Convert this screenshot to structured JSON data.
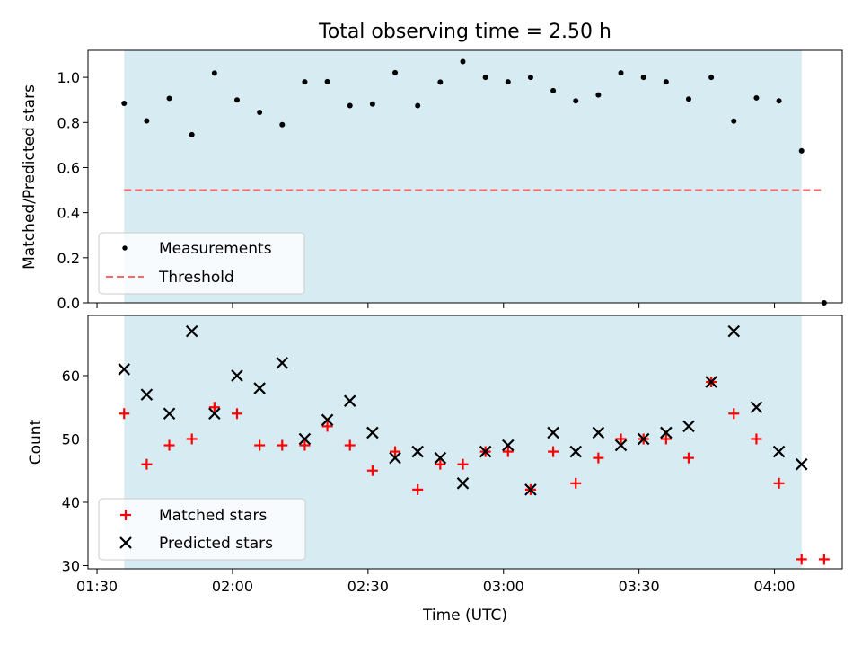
{
  "chart_data": [
    {
      "type": "scatter",
      "title": "Total observing time = 2.50 h",
      "xlabel": "",
      "ylabel": "Matched/Predicted stars",
      "xlim": [
        "01:28",
        "04:15"
      ],
      "ylim": [
        0,
        1.12
      ],
      "yticks": [
        0.0,
        0.2,
        0.4,
        0.6,
        0.8,
        1.0
      ],
      "ytick_labels": [
        "0.0",
        "0.2",
        "0.4",
        "0.6",
        "0.8",
        "1.0"
      ],
      "xticks": [
        "01:30",
        "02:00",
        "02:30",
        "03:00",
        "03:30",
        "04:00"
      ],
      "shaded_interval": {
        "start": "01:36",
        "end": "04:06",
        "color": "#add8e6"
      },
      "legend_position": "lower-left",
      "series": [
        {
          "name": "Measurements",
          "marker": "dot",
          "color": "#000000",
          "x": [
            "01:36",
            "01:41",
            "01:46",
            "01:51",
            "01:56",
            "02:01",
            "02:06",
            "02:11",
            "02:16",
            "02:21",
            "02:26",
            "02:31",
            "02:36",
            "02:41",
            "02:46",
            "02:51",
            "02:56",
            "03:01",
            "03:06",
            "03:11",
            "03:16",
            "03:21",
            "03:26",
            "03:31",
            "03:36",
            "03:41",
            "03:46",
            "03:51",
            "03:56",
            "04:01",
            "04:06",
            "04:11"
          ],
          "y": [
            0.885,
            0.807,
            0.907,
            0.746,
            1.019,
            0.9,
            0.845,
            0.79,
            0.98,
            0.981,
            0.875,
            0.882,
            1.021,
            0.875,
            0.979,
            1.07,
            1.0,
            0.98,
            1.0,
            0.941,
            0.896,
            0.922,
            1.02,
            1.0,
            0.98,
            0.904,
            1.0,
            0.806,
            0.909,
            0.896,
            0.674,
            0.0
          ]
        },
        {
          "name": "Threshold",
          "style": "dashed",
          "color": "#ff6666",
          "x": [
            "01:36",
            "04:11"
          ],
          "y": [
            0.5,
            0.5
          ]
        }
      ]
    },
    {
      "type": "scatter",
      "title": "",
      "xlabel": "Time (UTC)",
      "ylabel": "Count",
      "xlim": [
        "01:28",
        "04:15"
      ],
      "ylim": [
        29.5,
        69.5
      ],
      "yticks": [
        30,
        40,
        50,
        60
      ],
      "ytick_labels": [
        "30",
        "40",
        "50",
        "60"
      ],
      "xticks": [
        "01:30",
        "02:00",
        "02:30",
        "03:00",
        "03:30",
        "04:00"
      ],
      "xtick_labels": [
        "01:30",
        "02:00",
        "02:30",
        "03:00",
        "03:30",
        "04:00"
      ],
      "shaded_interval": {
        "start": "01:36",
        "end": "04:06",
        "color": "#add8e6"
      },
      "legend_position": "lower-left",
      "series": [
        {
          "name": "Matched stars",
          "marker": "plus",
          "color": "#ff0000",
          "x": [
            "01:36",
            "01:41",
            "01:46",
            "01:51",
            "01:56",
            "02:01",
            "02:06",
            "02:11",
            "02:16",
            "02:21",
            "02:26",
            "02:31",
            "02:36",
            "02:41",
            "02:46",
            "02:51",
            "02:56",
            "03:01",
            "03:06",
            "03:11",
            "03:16",
            "03:21",
            "03:26",
            "03:31",
            "03:36",
            "03:41",
            "03:46",
            "03:51",
            "03:56",
            "04:01",
            "04:06",
            "04:11"
          ],
          "y": [
            54,
            46,
            49,
            50,
            55,
            54,
            49,
            49,
            49,
            52,
            49,
            45,
            48,
            42,
            46,
            46,
            48,
            48,
            42,
            48,
            43,
            47,
            50,
            50,
            50,
            47,
            59,
            54,
            50,
            43,
            31,
            31
          ]
        },
        {
          "name": "Predicted stars",
          "marker": "x",
          "color": "#000000",
          "x": [
            "01:36",
            "01:41",
            "01:46",
            "01:51",
            "01:56",
            "02:01",
            "02:06",
            "02:11",
            "02:16",
            "02:21",
            "02:26",
            "02:31",
            "02:36",
            "02:41",
            "02:46",
            "02:51",
            "02:56",
            "03:01",
            "03:06",
            "03:11",
            "03:16",
            "03:21",
            "03:26",
            "03:31",
            "03:36",
            "03:41",
            "03:46",
            "03:51",
            "03:56",
            "04:01",
            "04:06"
          ],
          "y": [
            61,
            57,
            54,
            67,
            54,
            60,
            58,
            62,
            50,
            53,
            56,
            51,
            47,
            48,
            47,
            43,
            48,
            49,
            42,
            51,
            48,
            51,
            49,
            50,
            51,
            52,
            59,
            67,
            55,
            48,
            46
          ]
        }
      ]
    }
  ]
}
